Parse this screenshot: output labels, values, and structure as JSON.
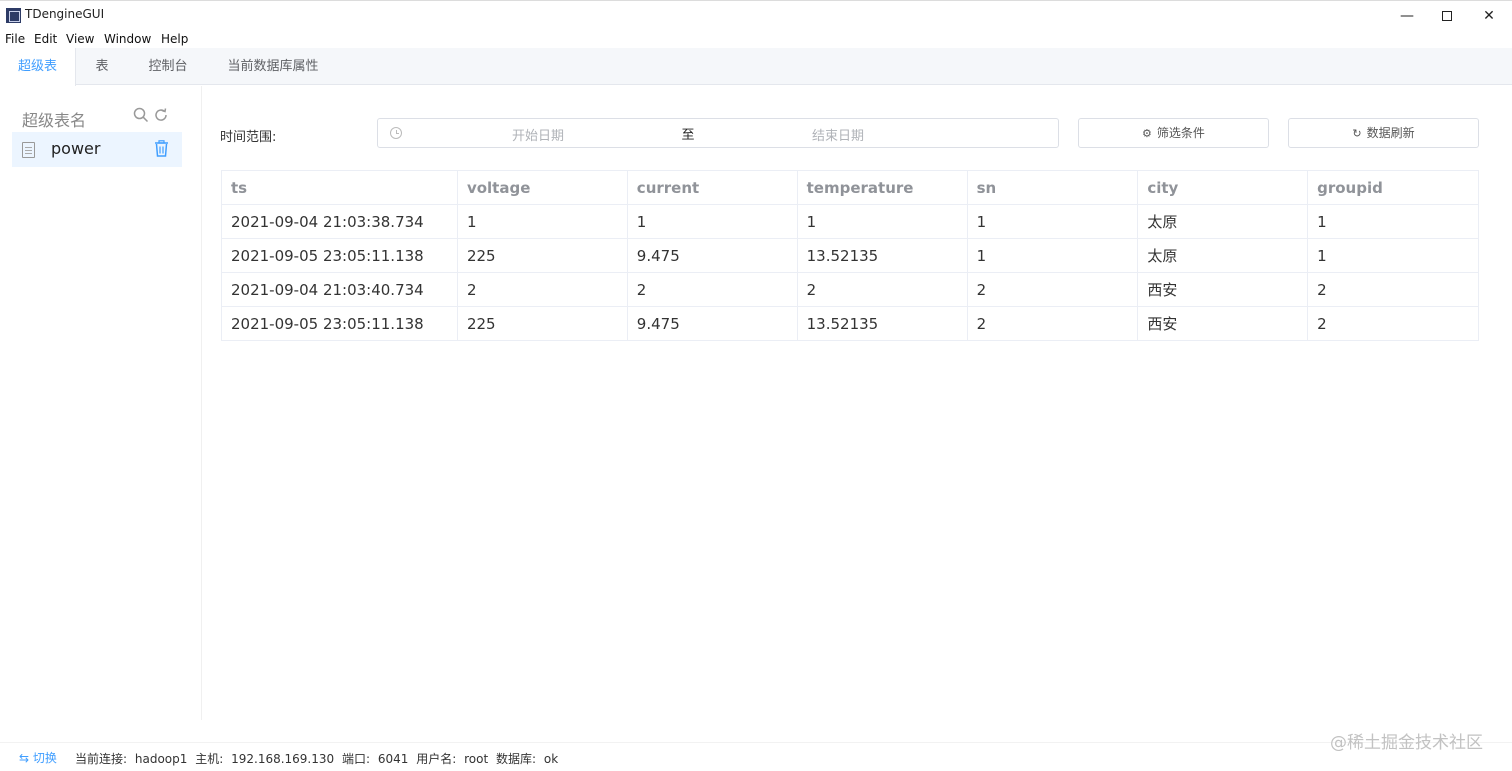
{
  "window": {
    "title": "TDengineGUI",
    "minimize": "—",
    "close": "✕"
  },
  "menu": [
    "File",
    "Edit",
    "View",
    "Window",
    "Help"
  ],
  "tabs": [
    "超级表",
    "表",
    "控制台",
    "当前数据库属性"
  ],
  "sidebar": {
    "title": "超级表名",
    "items": [
      {
        "label": "power"
      }
    ]
  },
  "filter": {
    "time_label": "时间范围:",
    "start_placeholder": "开始日期",
    "separator": "至",
    "end_placeholder": "结束日期",
    "filter_button": "筛选条件",
    "refresh_button": "数据刷新"
  },
  "table": {
    "columns": [
      "ts",
      "voltage",
      "current",
      "temperature",
      "sn",
      "city",
      "groupid"
    ],
    "rows": [
      [
        "2021-09-04 21:03:38.734",
        "1",
        "1",
        "1",
        "1",
        "太原",
        "1"
      ],
      [
        "2021-09-05 23:05:11.138",
        "225",
        "9.475",
        "13.52135",
        "1",
        "太原",
        "1"
      ],
      [
        "2021-09-04 21:03:40.734",
        "2",
        "2",
        "2",
        "2",
        "西安",
        "2"
      ],
      [
        "2021-09-05 23:05:11.138",
        "225",
        "9.475",
        "13.52135",
        "2",
        "西安",
        "2"
      ]
    ]
  },
  "status": {
    "switch_label": "⇆ 切换",
    "connection_label": "当前连接:",
    "connection_value": "hadoop1",
    "host_label": "主机:",
    "host_value": "192.168.169.130",
    "port_label": "端口:",
    "port_value": "6041",
    "user_label": "用户名:",
    "user_value": "root",
    "db_label": "数据库:",
    "db_value": "ok"
  },
  "watermark": "@稀土掘金技术社区",
  "colors": {
    "accent": "#409eff",
    "active_item_bg": "#ecf5ff"
  }
}
